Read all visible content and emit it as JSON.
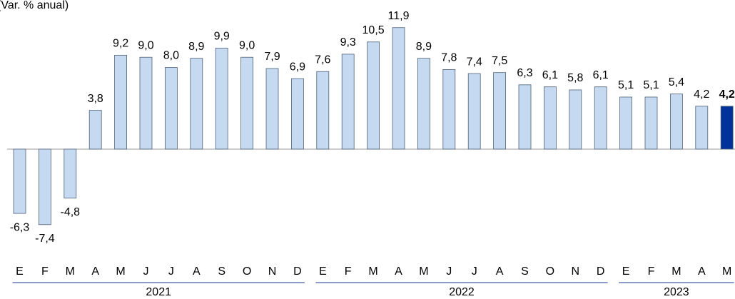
{
  "chart_data": {
    "type": "bar",
    "title": "(Var. % anual)",
    "categories": [
      "E",
      "F",
      "M",
      "A",
      "M",
      "J",
      "J",
      "A",
      "S",
      "O",
      "N",
      "D",
      "E",
      "F",
      "M",
      "A",
      "M",
      "J",
      "J",
      "A",
      "S",
      "O",
      "N",
      "D",
      "E",
      "F",
      "M",
      "A",
      "M"
    ],
    "groups": [
      "2021",
      "2022",
      "2023"
    ],
    "values": [
      -6.3,
      -7.4,
      -4.8,
      3.8,
      9.2,
      9.0,
      8.0,
      8.9,
      9.9,
      9.0,
      7.9,
      6.9,
      7.6,
      9.3,
      10.5,
      11.9,
      8.9,
      7.8,
      7.4,
      7.5,
      6.3,
      6.1,
      5.8,
      6.1,
      5.1,
      5.1,
      5.4,
      4.2,
      4.2
    ],
    "value_labels": [
      "-6,3",
      "-7,4",
      "-4,8",
      "3,8",
      "9,2",
      "9,0",
      "8,0",
      "8,9",
      "9,9",
      "9,0",
      "7,9",
      "6,9",
      "7,6",
      "9,3",
      "10,5",
      "11,9",
      "8,9",
      "7,8",
      "7,4",
      "7,5",
      "6,3",
      "6,1",
      "5,8",
      "6,1",
      "5,1",
      "5,1",
      "5,4",
      "4,2",
      "4,2"
    ],
    "colors": [
      "#c5d9f1",
      "#c5d9f1",
      "#c5d9f1",
      "#c5d9f1",
      "#c5d9f1",
      "#c5d9f1",
      "#c5d9f1",
      "#c5d9f1",
      "#c5d9f1",
      "#c5d9f1",
      "#c5d9f1",
      "#c5d9f1",
      "#c5d9f1",
      "#c5d9f1",
      "#c5d9f1",
      "#c5d9f1",
      "#c5d9f1",
      "#c5d9f1",
      "#c5d9f1",
      "#c5d9f1",
      "#c5d9f1",
      "#c5d9f1",
      "#c5d9f1",
      "#c5d9f1",
      "#c5d9f1",
      "#c5d9f1",
      "#c5d9f1",
      "#c5d9f1",
      "#003399"
    ],
    "ylim": [
      -12,
      13
    ]
  }
}
